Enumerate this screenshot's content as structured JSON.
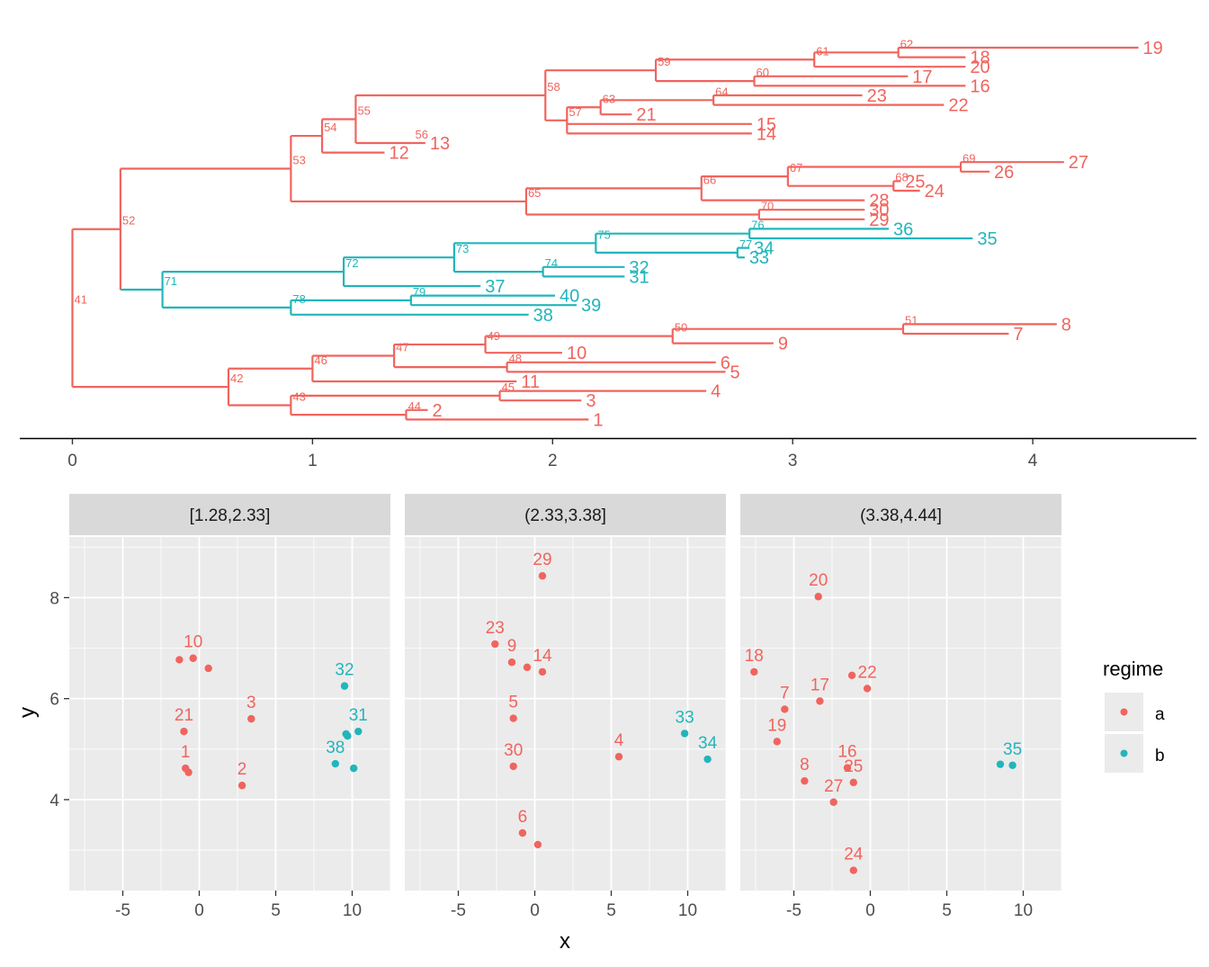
{
  "colors": {
    "a": "#f0645e",
    "b": "#22b5bb",
    "panel": "#ebebeb",
    "strip": "#d9d9d9",
    "grid": "#ffffff",
    "axis": "#000000",
    "tickText": "#4d4d4d"
  },
  "chart_data": [
    {
      "type": "tree",
      "x_axis": {
        "ticks": [
          0,
          1,
          2,
          3,
          4
        ],
        "range": [
          -0.22,
          4.7
        ]
      },
      "nodes": [
        {
          "id": 41,
          "parent": null,
          "x": 0,
          "regime": "a"
        },
        {
          "id": 52,
          "parent": 41,
          "x": 0.2,
          "regime": "a"
        },
        {
          "id": 42,
          "parent": 41,
          "x": 0.65,
          "regime": "a"
        },
        {
          "id": 53,
          "parent": 52,
          "x": 0.91,
          "regime": "a"
        },
        {
          "id": 71,
          "parent": 52,
          "x": 0.375,
          "regime": "b"
        },
        {
          "id": 54,
          "parent": 53,
          "x": 1.04,
          "regime": "a"
        },
        {
          "id": 65,
          "parent": 53,
          "x": 1.89,
          "regime": "a"
        },
        {
          "id": 55,
          "parent": 54,
          "x": 1.18,
          "regime": "a"
        },
        {
          "id": 12,
          "parent": 54,
          "x": 1.3,
          "regime": "a"
        },
        {
          "id": 58,
          "parent": 55,
          "x": 1.97,
          "regime": "a"
        },
        {
          "id": 56,
          "parent": 55,
          "x": 1.42,
          "regime": "a"
        },
        {
          "id": 59,
          "parent": 58,
          "x": 2.43,
          "regime": "a"
        },
        {
          "id": 57,
          "parent": 58,
          "x": 2.06,
          "regime": "a"
        },
        {
          "id": 61,
          "parent": 59,
          "x": 3.09,
          "regime": "a"
        },
        {
          "id": 60,
          "parent": 59,
          "x": 2.84,
          "regime": "a"
        },
        {
          "id": 62,
          "parent": 61,
          "x": 3.44,
          "regime": "a"
        },
        {
          "id": 19,
          "parent": 62,
          "x": 4.44,
          "regime": "a"
        },
        {
          "id": 18,
          "parent": 62,
          "x": 3.72,
          "regime": "a"
        },
        {
          "id": 20,
          "parent": 61,
          "x": 3.72,
          "regime": "a"
        },
        {
          "id": 17,
          "parent": 60,
          "x": 3.48,
          "regime": "a"
        },
        {
          "id": 16,
          "parent": 60,
          "x": 3.72,
          "regime": "a"
        },
        {
          "id": 63,
          "parent": 57,
          "x": 2.2,
          "regime": "a"
        },
        {
          "id": 64,
          "parent": 63,
          "x": 2.67,
          "regime": "a"
        },
        {
          "id": 23,
          "parent": 64,
          "x": 3.29,
          "regime": "a"
        },
        {
          "id": 22,
          "parent": 64,
          "x": 3.63,
          "regime": "a"
        },
        {
          "id": 21,
          "parent": 63,
          "x": 2.33,
          "regime": "a"
        },
        {
          "id": 15,
          "parent": 57,
          "x": 2.83,
          "regime": "a"
        },
        {
          "id": 14,
          "parent": 57,
          "x": 2.83,
          "regime": "a"
        },
        {
          "id": 13,
          "parent": 56,
          "x": 1.47,
          "regime": "a"
        },
        {
          "id": 66,
          "parent": 65,
          "x": 2.62,
          "regime": "a"
        },
        {
          "id": 67,
          "parent": 66,
          "x": 2.98,
          "regime": "a"
        },
        {
          "id": 69,
          "parent": 67,
          "x": 3.7,
          "regime": "a"
        },
        {
          "id": 27,
          "parent": 69,
          "x": 4.13,
          "regime": "a"
        },
        {
          "id": 26,
          "parent": 69,
          "x": 3.82,
          "regime": "a"
        },
        {
          "id": 68,
          "parent": 67,
          "x": 3.42,
          "regime": "a"
        },
        {
          "id": 25,
          "parent": 68,
          "x": 3.45,
          "regime": "a"
        },
        {
          "id": 24,
          "parent": 68,
          "x": 3.53,
          "regime": "a"
        },
        {
          "id": 28,
          "parent": 66,
          "x": 3.3,
          "regime": "a"
        },
        {
          "id": 70,
          "parent": 65,
          "x": 2.86,
          "regime": "a"
        },
        {
          "id": 30,
          "parent": 70,
          "x": 3.3,
          "regime": "a"
        },
        {
          "id": 29,
          "parent": 70,
          "x": 3.3,
          "regime": "a"
        },
        {
          "id": 72,
          "parent": 71,
          "x": 1.13,
          "regime": "b"
        },
        {
          "id": 78,
          "parent": 71,
          "x": 0.91,
          "regime": "b"
        },
        {
          "id": 73,
          "parent": 72,
          "x": 1.59,
          "regime": "b"
        },
        {
          "id": 37,
          "parent": 72,
          "x": 1.7,
          "regime": "b"
        },
        {
          "id": 75,
          "parent": 73,
          "x": 2.18,
          "regime": "b"
        },
        {
          "id": 74,
          "parent": 73,
          "x": 1.96,
          "regime": "b"
        },
        {
          "id": 76,
          "parent": 75,
          "x": 2.82,
          "regime": "b"
        },
        {
          "id": 36,
          "parent": 76,
          "x": 3.4,
          "regime": "b"
        },
        {
          "id": 35,
          "parent": 76,
          "x": 3.75,
          "regime": "b"
        },
        {
          "id": 77,
          "parent": 75,
          "x": 2.77,
          "regime": "b"
        },
        {
          "id": 34,
          "parent": 77,
          "x": 2.82,
          "regime": "b"
        },
        {
          "id": 33,
          "parent": 77,
          "x": 2.8,
          "regime": "b"
        },
        {
          "id": 32,
          "parent": 74,
          "x": 2.3,
          "regime": "b"
        },
        {
          "id": 31,
          "parent": 74,
          "x": 2.3,
          "regime": "b"
        },
        {
          "id": 79,
          "parent": 78,
          "x": 1.41,
          "regime": "b"
        },
        {
          "id": 40,
          "parent": 79,
          "x": 2.01,
          "regime": "b"
        },
        {
          "id": 39,
          "parent": 79,
          "x": 2.1,
          "regime": "b"
        },
        {
          "id": 38,
          "parent": 78,
          "x": 1.9,
          "regime": "b"
        },
        {
          "id": 43,
          "parent": 42,
          "x": 0.91,
          "regime": "a"
        },
        {
          "id": 46,
          "parent": 42,
          "x": 1,
          "regime": "a"
        },
        {
          "id": 47,
          "parent": 46,
          "x": 1.34,
          "regime": "a"
        },
        {
          "id": 11,
          "parent": 46,
          "x": 1.85,
          "regime": "a"
        },
        {
          "id": 49,
          "parent": 47,
          "x": 1.72,
          "regime": "a"
        },
        {
          "id": 48,
          "parent": 47,
          "x": 1.81,
          "regime": "a"
        },
        {
          "id": 50,
          "parent": 49,
          "x": 2.5,
          "regime": "a"
        },
        {
          "id": 51,
          "parent": 50,
          "x": 3.46,
          "regime": "a"
        },
        {
          "id": 8,
          "parent": 51,
          "x": 4.1,
          "regime": "a"
        },
        {
          "id": 7,
          "parent": 51,
          "x": 3.9,
          "regime": "a"
        },
        {
          "id": 9,
          "parent": 50,
          "x": 2.92,
          "regime": "a"
        },
        {
          "id": 10,
          "parent": 49,
          "x": 2.04,
          "regime": "a"
        },
        {
          "id": 6,
          "parent": 48,
          "x": 2.68,
          "regime": "a"
        },
        {
          "id": 5,
          "parent": 48,
          "x": 2.72,
          "regime": "a"
        },
        {
          "id": 45,
          "parent": 43,
          "x": 1.78,
          "regime": "a"
        },
        {
          "id": 4,
          "parent": 45,
          "x": 2.64,
          "regime": "a"
        },
        {
          "id": 3,
          "parent": 45,
          "x": 2.12,
          "regime": "a"
        },
        {
          "id": 44,
          "parent": 43,
          "x": 1.39,
          "regime": "a"
        },
        {
          "id": 2,
          "parent": 44,
          "x": 1.48,
          "regime": "a"
        },
        {
          "id": 1,
          "parent": 44,
          "x": 2.15,
          "regime": "a"
        }
      ]
    },
    {
      "type": "scatter",
      "xlabel": "x",
      "ylabel": "y",
      "xlim": [
        -8.5,
        12.5
      ],
      "ylim": [
        2.2,
        9.2
      ],
      "xticks": [
        -5,
        0,
        5,
        10
      ],
      "yticks": [
        4,
        6,
        8
      ],
      "legend": {
        "title": "regime",
        "entries": [
          "a",
          "b"
        ],
        "position": "right"
      },
      "panels": [
        {
          "label": "[1.28,2.33]",
          "points": [
            {
              "x": -1.3,
              "y": 6.77,
              "regime": "a",
              "label": ""
            },
            {
              "x": -0.4,
              "y": 6.8,
              "regime": "a",
              "label": "10"
            },
            {
              "x": 0.6,
              "y": 6.6,
              "regime": "a",
              "label": ""
            },
            {
              "x": 3.4,
              "y": 5.6,
              "regime": "a",
              "label": "3"
            },
            {
              "x": -1.0,
              "y": 5.35,
              "regime": "a",
              "label": "21"
            },
            {
              "x": -0.9,
              "y": 4.62,
              "regime": "a",
              "label": "1"
            },
            {
              "x": -0.7,
              "y": 4.54,
              "regime": "a",
              "label": ""
            },
            {
              "x": 2.8,
              "y": 4.28,
              "regime": "a",
              "label": "2"
            },
            {
              "x": 9.5,
              "y": 6.25,
              "regime": "b",
              "label": "32"
            },
            {
              "x": 9.6,
              "y": 5.3,
              "regime": "b",
              "label": ""
            },
            {
              "x": 9.7,
              "y": 5.26,
              "regime": "b",
              "label": ""
            },
            {
              "x": 10.4,
              "y": 5.35,
              "regime": "b",
              "label": "31"
            },
            {
              "x": 8.9,
              "y": 4.71,
              "regime": "b",
              "label": "38"
            },
            {
              "x": 10.1,
              "y": 4.62,
              "regime": "b",
              "label": ""
            }
          ]
        },
        {
          "label": "(2.33,3.38]",
          "points": [
            {
              "x": 0.5,
              "y": 8.43,
              "regime": "a",
              "label": "29"
            },
            {
              "x": -2.6,
              "y": 7.08,
              "regime": "a",
              "label": "23"
            },
            {
              "x": -1.5,
              "y": 6.72,
              "regime": "a",
              "label": "9"
            },
            {
              "x": -0.5,
              "y": 6.62,
              "regime": "a",
              "label": ""
            },
            {
              "x": 0.5,
              "y": 6.53,
              "regime": "a",
              "label": "14"
            },
            {
              "x": -1.4,
              "y": 5.61,
              "regime": "a",
              "label": "5"
            },
            {
              "x": -1.4,
              "y": 4.66,
              "regime": "a",
              "label": "30"
            },
            {
              "x": 5.5,
              "y": 4.85,
              "regime": "a",
              "label": "4"
            },
            {
              "x": -0.8,
              "y": 3.34,
              "regime": "a",
              "label": "6"
            },
            {
              "x": 0.2,
              "y": 3.11,
              "regime": "a",
              "label": ""
            },
            {
              "x": 9.8,
              "y": 5.31,
              "regime": "b",
              "label": "33"
            },
            {
              "x": 11.3,
              "y": 4.8,
              "regime": "b",
              "label": "34"
            }
          ]
        },
        {
          "label": "(3.38,4.44]",
          "points": [
            {
              "x": -3.4,
              "y": 8.02,
              "regime": "a",
              "label": "20"
            },
            {
              "x": -7.6,
              "y": 6.53,
              "regime": "a",
              "label": "18"
            },
            {
              "x": -1.2,
              "y": 6.46,
              "regime": "a",
              "label": ""
            },
            {
              "x": -0.2,
              "y": 6.2,
              "regime": "a",
              "label": "22"
            },
            {
              "x": -3.3,
              "y": 5.95,
              "regime": "a",
              "label": "17"
            },
            {
              "x": -5.6,
              "y": 5.79,
              "regime": "a",
              "label": "7"
            },
            {
              "x": -6.1,
              "y": 5.15,
              "regime": "a",
              "label": "19"
            },
            {
              "x": -4.3,
              "y": 4.37,
              "regime": "a",
              "label": "8"
            },
            {
              "x": -1.5,
              "y": 4.63,
              "regime": "a",
              "label": "16"
            },
            {
              "x": -1.1,
              "y": 4.34,
              "regime": "a",
              "label": "25"
            },
            {
              "x": -2.4,
              "y": 3.95,
              "regime": "a",
              "label": "27"
            },
            {
              "x": -1.1,
              "y": 2.6,
              "regime": "a",
              "label": "24"
            },
            {
              "x": 8.5,
              "y": 4.7,
              "regime": "b",
              "label": ""
            },
            {
              "x": 9.3,
              "y": 4.68,
              "regime": "b",
              "label": "35"
            }
          ]
        }
      ]
    }
  ]
}
